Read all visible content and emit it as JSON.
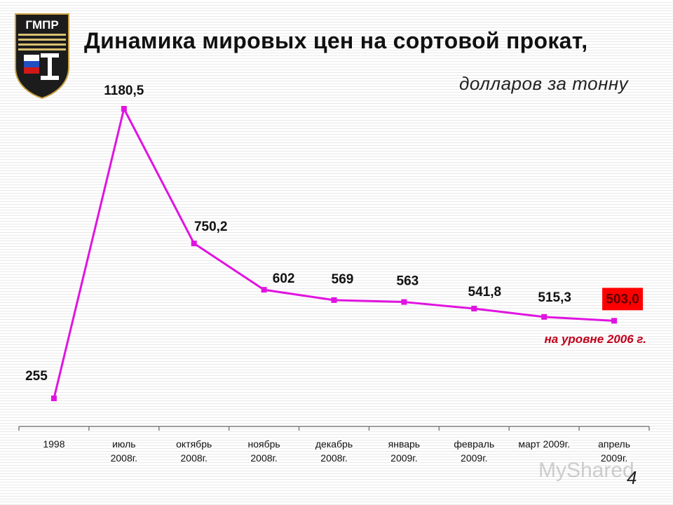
{
  "header": {
    "logo_text": "ГМПР",
    "title": "Динамика мировых цен на сортовой прокат,",
    "subtitle": "долларов за тонну"
  },
  "chart_data": {
    "type": "line",
    "categories": [
      [
        "1998"
      ],
      [
        "июль",
        "2008г."
      ],
      [
        "октябрь",
        "2008г."
      ],
      [
        "ноябрь",
        "2008г."
      ],
      [
        "декабрь",
        "2008г."
      ],
      [
        "январь",
        "2009г."
      ],
      [
        "февраль",
        "2009г."
      ],
      [
        "март 2009г."
      ],
      [
        "апрель",
        "2009г."
      ]
    ],
    "values": [
      255,
      1180.5,
      750.2,
      602,
      569,
      563,
      541.8,
      515.3,
      503.0
    ],
    "data_labels": [
      "255",
      "1180,5",
      "750,2",
      "602",
      "569",
      "563",
      "541,8",
      "515,3",
      "503,0"
    ],
    "highlight_index": 8,
    "annotation": "на уровне 2006 г.",
    "series_color": "#e014e0",
    "highlight_color": "#ff0000",
    "annotation_color": "#c0001a",
    "ylim": [
      200,
      1200
    ],
    "grid": true,
    "legend": "none"
  },
  "footer": {
    "page_number": "4",
    "watermark": "MyShared"
  }
}
